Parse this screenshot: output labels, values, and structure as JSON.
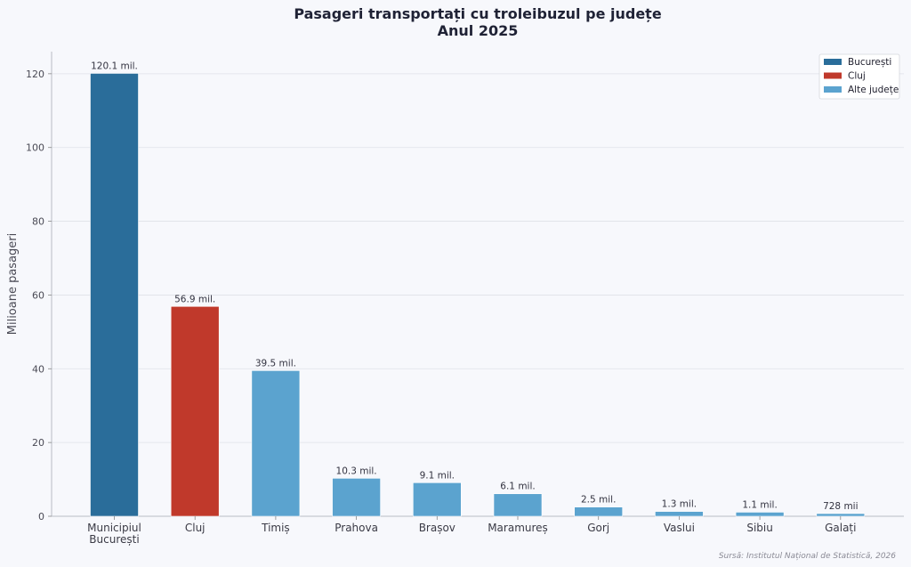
{
  "chart_data": {
    "type": "bar",
    "title_lines": [
      "Pasageri transportați cu troleibuzul pe județe",
      "Anul 2025"
    ],
    "ylabel": "Milioane pasageri",
    "xlabel": "",
    "ylim": [
      0,
      126
    ],
    "yticks": [
      0,
      20,
      40,
      60,
      80,
      100,
      120
    ],
    "grid": true,
    "legend_position": "top-right",
    "categories": [
      [
        "Municipiul",
        "București"
      ],
      [
        "Cluj"
      ],
      [
        "Timiș"
      ],
      [
        "Prahova"
      ],
      [
        "Brașov"
      ],
      [
        "Maramureș"
      ],
      [
        "Gorj"
      ],
      [
        "Vaslui"
      ],
      [
        "Sibiu"
      ],
      [
        "Galați"
      ]
    ],
    "values": [
      120.1,
      56.9,
      39.5,
      10.3,
      9.1,
      6.1,
      2.5,
      1.3,
      1.1,
      0.728
    ],
    "data_labels": [
      "120.1 mil.",
      "56.9 mil.",
      "39.5 mil.",
      "10.3 mil.",
      "9.1 mil.",
      "6.1 mil.",
      "2.5 mil.",
      "1.3 mil.",
      "1.1 mil.",
      "728 mii"
    ],
    "groups": [
      0,
      1,
      2,
      2,
      2,
      2,
      2,
      2,
      2,
      2
    ],
    "legend": [
      {
        "label": "București",
        "color": "#2a6d9a"
      },
      {
        "label": "Cluj",
        "color": "#c0392b"
      },
      {
        "label": "Alte județe",
        "color": "#5ba3cf"
      }
    ],
    "source": "Sursă: Institutul Național de Statistică, 2026"
  }
}
